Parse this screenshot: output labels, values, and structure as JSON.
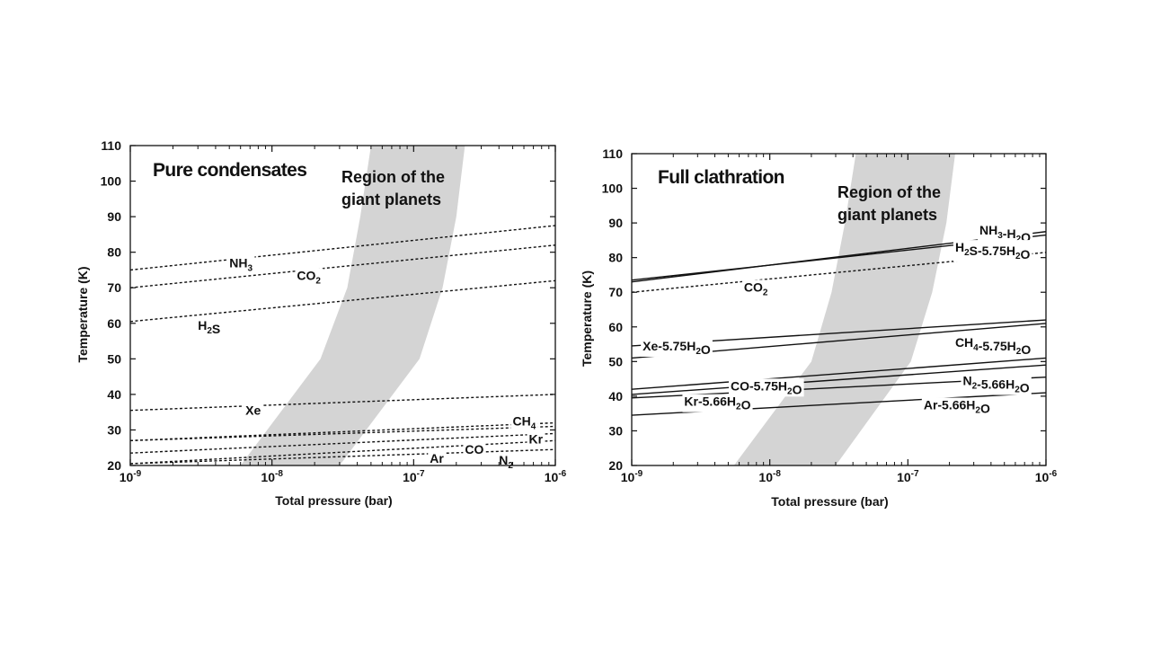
{
  "chart_data": [
    {
      "type": "line",
      "title": "Pure condensates",
      "annotation": [
        "Region of the",
        "giant planets"
      ],
      "xlabel": "Total pressure (bar)",
      "ylabel": "Temperature (K)",
      "xscale": "log",
      "xlim": [
        1e-09,
        1e-06
      ],
      "ylim": [
        20,
        110
      ],
      "xticks": [
        {
          "base": "10",
          "exp": "-9"
        },
        {
          "base": "10",
          "exp": "-8"
        },
        {
          "base": "10",
          "exp": "-7"
        },
        {
          "base": "10",
          "exp": "-6"
        }
      ],
      "yticks": [
        20,
        30,
        40,
        50,
        60,
        70,
        80,
        90,
        100,
        110
      ],
      "line_style": "dashed",
      "region": {
        "fill": "#d4d4d4",
        "left_edge": [
          [
            6e-09,
            20
          ],
          [
            2.2e-08,
            50
          ],
          [
            3.4e-08,
            70
          ],
          [
            4.2e-08,
            90
          ],
          [
            5e-08,
            110
          ]
        ],
        "right_edge": [
          [
            3e-08,
            20
          ],
          [
            1.1e-07,
            50
          ],
          [
            1.6e-07,
            70
          ],
          [
            2e-07,
            90
          ],
          [
            2.3e-07,
            110
          ]
        ]
      },
      "series": [
        {
          "label": [
            {
              "t": "NH"
            },
            {
              "t": "3",
              "sub": true
            }
          ],
          "x": [
            1e-09,
            1e-06
          ],
          "y": [
            75,
            87.5
          ],
          "label_at": [
            5e-09,
            77
          ]
        },
        {
          "label": [
            {
              "t": "CO"
            },
            {
              "t": "2",
              "sub": true
            }
          ],
          "x": [
            1e-09,
            1e-06
          ],
          "y": [
            70,
            82
          ],
          "label_at": [
            1.5e-08,
            73.5
          ]
        },
        {
          "label": [
            {
              "t": "H"
            },
            {
              "t": "2",
              "sub": true
            },
            {
              "t": "S"
            }
          ],
          "x": [
            1e-09,
            1e-06
          ],
          "y": [
            60.5,
            72
          ],
          "label_at": [
            3e-09,
            59.5
          ]
        },
        {
          "label": [
            {
              "t": "Xe"
            }
          ],
          "x": [
            1e-09,
            1e-06
          ],
          "y": [
            35.5,
            40
          ],
          "label_at": [
            6.5e-09,
            35.5
          ]
        },
        {
          "label": [
            {
              "t": "CH"
            },
            {
              "t": "4",
              "sub": true
            }
          ],
          "x": [
            1e-09,
            1e-06
          ],
          "y": [
            27,
            32
          ],
          "label_at": [
            5e-07,
            32.5
          ]
        },
        {
          "label": [
            {
              "t": "Kr"
            }
          ],
          "x": [
            1e-09,
            1e-06
          ],
          "y": [
            27,
            31
          ],
          "label_at": [
            6.5e-07,
            27.5
          ]
        },
        {
          "label": [
            {
              "t": "CO"
            }
          ],
          "x": [
            1e-09,
            1e-06
          ],
          "y": [
            23.5,
            29
          ],
          "label_at": [
            2.3e-07,
            24.5
          ]
        },
        {
          "label": [
            {
              "t": "Ar"
            }
          ],
          "x": [
            1e-09,
            1e-06
          ],
          "y": [
            20.5,
            27
          ],
          "label_at": [
            1.3e-07,
            22
          ]
        },
        {
          "label": [
            {
              "t": "N"
            },
            {
              "t": "2",
              "sub": true
            }
          ],
          "x": [
            1e-09,
            1e-06
          ],
          "y": [
            20.5,
            24.5
          ],
          "label_at": [
            4e-07,
            21.5
          ]
        }
      ]
    },
    {
      "type": "line",
      "title": "Full clathration",
      "annotation": [
        "Region of the",
        "giant planets"
      ],
      "xlabel": "Total pressure (bar)",
      "ylabel": "Temperature (K)",
      "xscale": "log",
      "xlim": [
        1e-09,
        1e-06
      ],
      "ylim": [
        20,
        110
      ],
      "xticks": [
        {
          "base": "10",
          "exp": "-9"
        },
        {
          "base": "10",
          "exp": "-8"
        },
        {
          "base": "10",
          "exp": "-7"
        },
        {
          "base": "10",
          "exp": "-6"
        }
      ],
      "yticks": [
        20,
        30,
        40,
        50,
        60,
        70,
        80,
        90,
        100,
        110
      ],
      "region": {
        "fill": "#d4d4d4",
        "left_edge": [
          [
            5.5e-09,
            20
          ],
          [
            2e-08,
            50
          ],
          [
            2.8e-08,
            70
          ],
          [
            3.5e-08,
            90
          ],
          [
            4.2e-08,
            110
          ]
        ],
        "right_edge": [
          [
            3e-08,
            20
          ],
          [
            1.05e-07,
            50
          ],
          [
            1.5e-07,
            70
          ],
          [
            1.9e-07,
            90
          ],
          [
            2.2e-07,
            110
          ]
        ]
      },
      "series": [
        {
          "label": [
            {
              "t": "NH"
            },
            {
              "t": "3",
              "sub": true
            },
            {
              "t": "-H"
            },
            {
              "t": "2",
              "sub": true
            },
            {
              "t": "O"
            }
          ],
          "x": [
            1e-09,
            1e-06
          ],
          "y": [
            73,
            87.5
          ],
          "label_at": [
            3.3e-07,
            88
          ],
          "style": "solid"
        },
        {
          "label": [
            {
              "t": "H"
            },
            {
              "t": "2",
              "sub": true
            },
            {
              "t": "S-5.75H"
            },
            {
              "t": "2",
              "sub": true
            },
            {
              "t": "O"
            }
          ],
          "x": [
            1e-09,
            1e-06
          ],
          "y": [
            73.5,
            86.5
          ],
          "label_at": [
            2.2e-07,
            83
          ],
          "style": "solid"
        },
        {
          "label": [
            {
              "t": "CO"
            },
            {
              "t": "2",
              "sub": true
            }
          ],
          "x": [
            1e-09,
            1e-06
          ],
          "y": [
            70,
            81.5
          ],
          "label_at": [
            6.5e-09,
            71.5
          ],
          "style": "dashed"
        },
        {
          "label": [
            {
              "t": "Xe-5.75H"
            },
            {
              "t": "2",
              "sub": true
            },
            {
              "t": "O"
            }
          ],
          "x": [
            1e-09,
            1e-06
          ],
          "y": [
            54.5,
            62
          ],
          "label_at": [
            1.2e-09,
            54.5
          ],
          "style": "solid"
        },
        {
          "label": [
            {
              "t": "CH"
            },
            {
              "t": "4",
              "sub": true
            },
            {
              "t": "-5.75H"
            },
            {
              "t": "2",
              "sub": true
            },
            {
              "t": "O"
            }
          ],
          "x": [
            1e-09,
            1e-06
          ],
          "y": [
            51,
            61
          ],
          "label_at": [
            2.2e-07,
            55.5
          ],
          "style": "solid"
        },
        {
          "label": [
            {
              "t": "CO-5.75H"
            },
            {
              "t": "2",
              "sub": true
            },
            {
              "t": "O"
            }
          ],
          "x": [
            1e-09,
            1e-06
          ],
          "y": [
            42,
            51
          ],
          "label_at": [
            5.2e-09,
            43
          ],
          "style": "solid"
        },
        {
          "label": [
            {
              "t": "N"
            },
            {
              "t": "2",
              "sub": true
            },
            {
              "t": "-5.66H"
            },
            {
              "t": "2",
              "sub": true
            },
            {
              "t": "O"
            }
          ],
          "x": [
            1e-09,
            1e-06
          ],
          "y": [
            40.5,
            49
          ],
          "label_at": [
            2.5e-07,
            44.5
          ],
          "style": "solid"
        },
        {
          "label": [
            {
              "t": "Kr-5.66H"
            },
            {
              "t": "2",
              "sub": true
            },
            {
              "t": "O"
            }
          ],
          "x": [
            1e-09,
            1e-06
          ],
          "y": [
            39.5,
            45.5
          ],
          "label_at": [
            2.4e-09,
            38.5
          ],
          "style": "solid"
        },
        {
          "label": [
            {
              "t": "Ar-5.66H"
            },
            {
              "t": "2",
              "sub": true
            },
            {
              "t": "O"
            }
          ],
          "x": [
            1e-09,
            1e-06
          ],
          "y": [
            34.5,
            41
          ],
          "label_at": [
            1.3e-07,
            37.5
          ],
          "style": "solid"
        }
      ]
    }
  ]
}
